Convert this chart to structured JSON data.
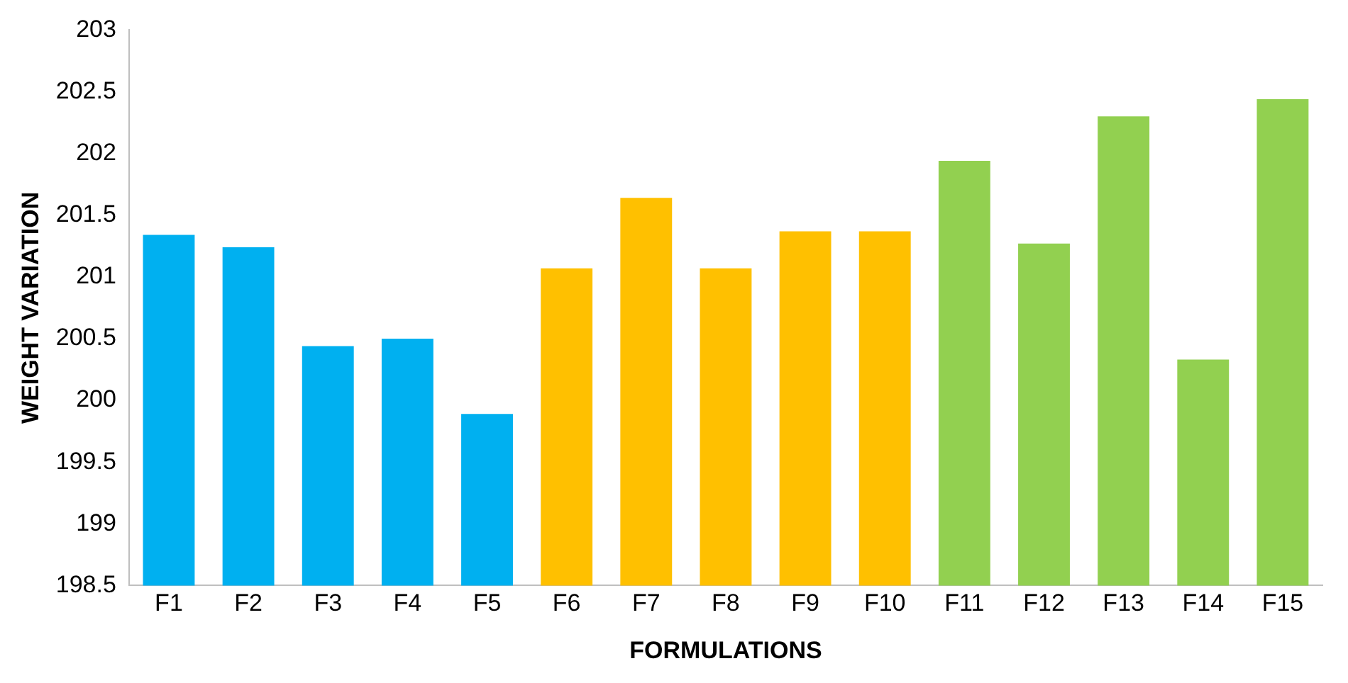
{
  "chart_data": {
    "type": "bar",
    "xlabel": "FORMULATIONS",
    "ylabel": "WEIGHT VARIATION",
    "categories": [
      "F1",
      "F2",
      "F3",
      "F4",
      "F5",
      "F6",
      "F7",
      "F8",
      "F9",
      "F10",
      "F11",
      "F12",
      "F13",
      "F14",
      "F15"
    ],
    "values": [
      201.34,
      201.24,
      200.44,
      200.5,
      199.89,
      201.07,
      201.64,
      201.07,
      201.37,
      201.37,
      201.94,
      201.27,
      202.3,
      200.33,
      202.44
    ],
    "colors": [
      "#00b0f0",
      "#00b0f0",
      "#00b0f0",
      "#00b0f0",
      "#00b0f0",
      "#ffc000",
      "#ffc000",
      "#ffc000",
      "#ffc000",
      "#ffc000",
      "#92d050",
      "#92d050",
      "#92d050",
      "#92d050",
      "#92d050"
    ],
    "ylim": [
      198.5,
      203
    ],
    "yticks": [
      198.5,
      199,
      199.5,
      200,
      200.5,
      201,
      201.5,
      202,
      202.5,
      203
    ],
    "grid": false,
    "legend": false
  }
}
